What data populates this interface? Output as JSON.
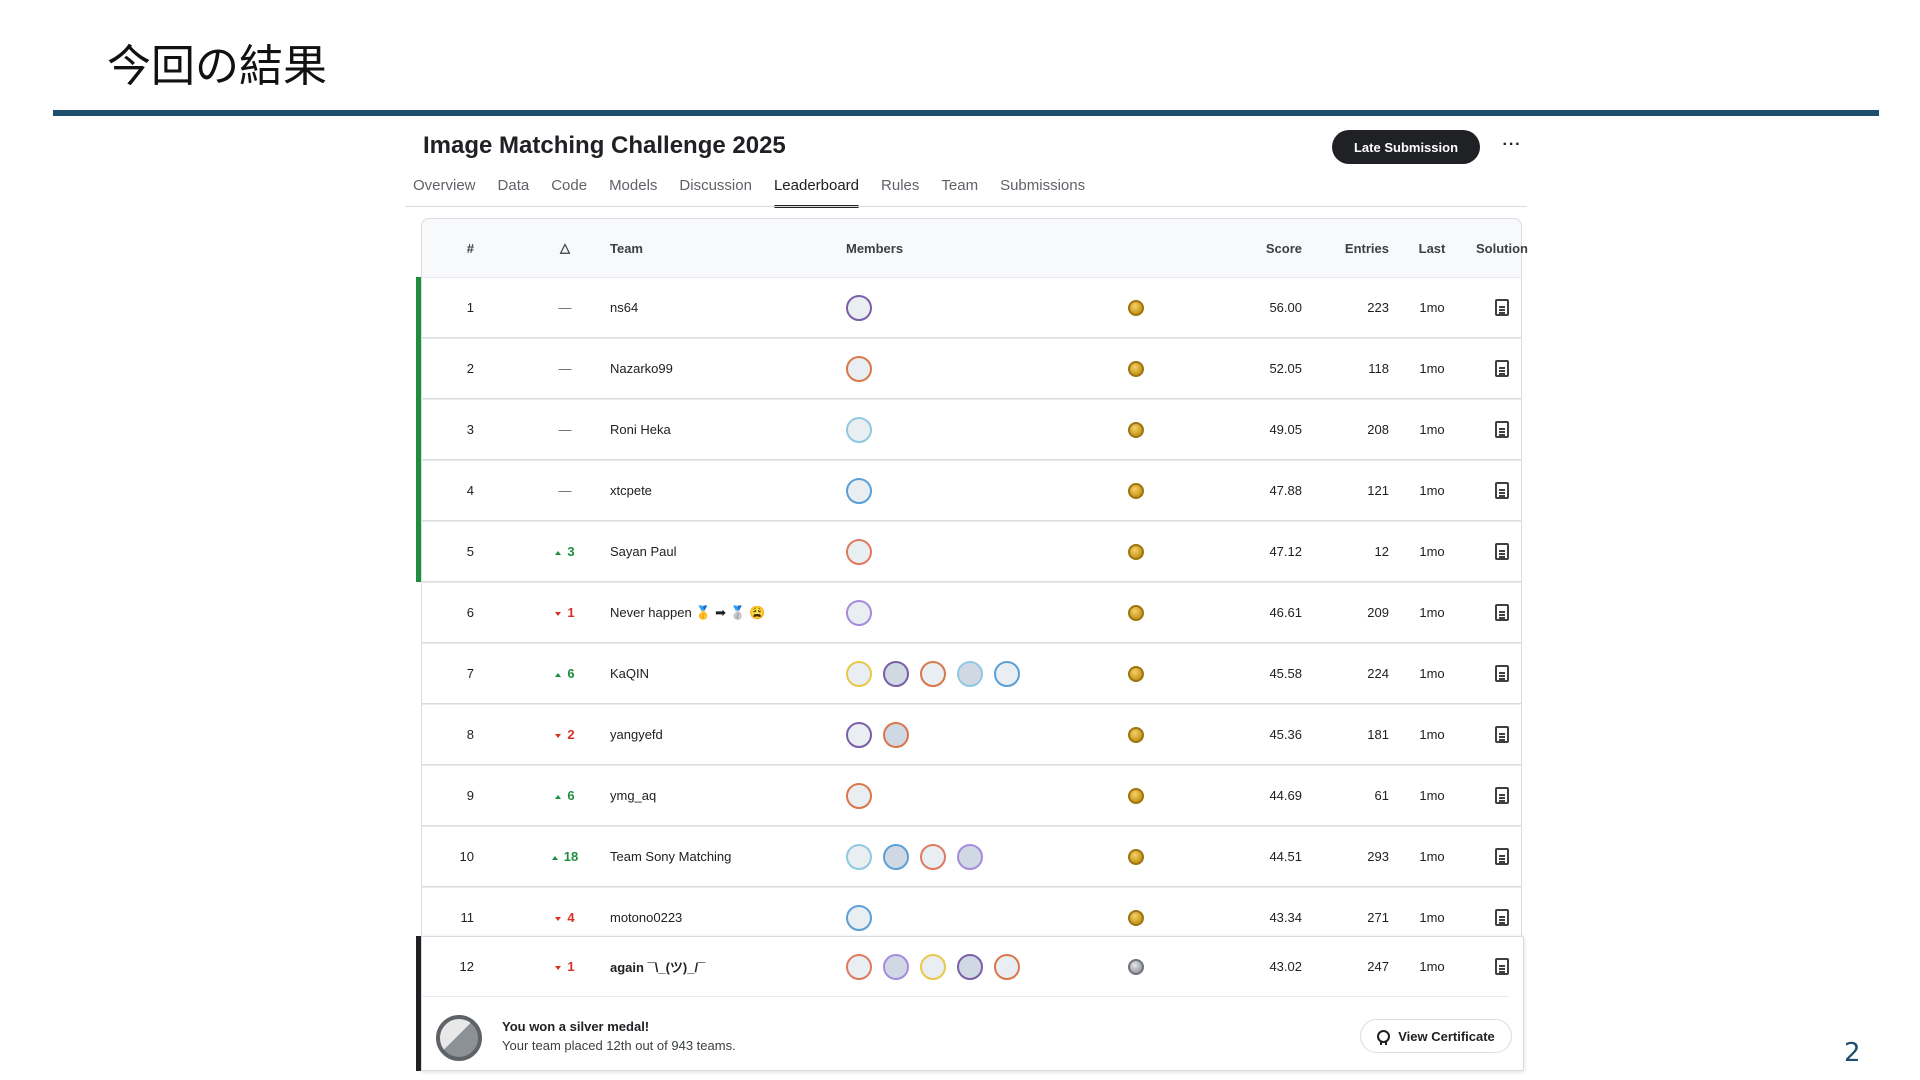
{
  "slide": {
    "title": "今回の結果",
    "page_number": "2"
  },
  "competition": {
    "title": "Image Matching Challenge 2025",
    "late_submission_label": "Late Submission",
    "more_label": "···",
    "tabs": [
      "Overview",
      "Data",
      "Code",
      "Models",
      "Discussion",
      "Leaderboard",
      "Rules",
      "Team",
      "Submissions"
    ],
    "active_tab": "Leaderboard"
  },
  "leaderboard": {
    "headers": {
      "rank": "#",
      "delta": "△",
      "team": "Team",
      "members": "Members",
      "score": "Score",
      "entries": "Entries",
      "last": "Last",
      "solution": "Solution"
    },
    "rows": [
      {
        "rank": "1",
        "delta": "—",
        "delta_dir": "none",
        "team": "ns64",
        "member_count": 1,
        "medal": "gold",
        "score": "56.00",
        "entries": "223",
        "last": "1mo"
      },
      {
        "rank": "2",
        "delta": "—",
        "delta_dir": "none",
        "team": "Nazarko99",
        "member_count": 1,
        "medal": "gold",
        "score": "52.05",
        "entries": "118",
        "last": "1mo"
      },
      {
        "rank": "3",
        "delta": "—",
        "delta_dir": "none",
        "team": "Roni Heka",
        "member_count": 1,
        "medal": "gold",
        "score": "49.05",
        "entries": "208",
        "last": "1mo"
      },
      {
        "rank": "4",
        "delta": "—",
        "delta_dir": "none",
        "team": "xtcpete",
        "member_count": 1,
        "medal": "gold",
        "score": "47.88",
        "entries": "121",
        "last": "1mo"
      },
      {
        "rank": "5",
        "delta": "3",
        "delta_dir": "up",
        "team": "Sayan Paul",
        "member_count": 1,
        "medal": "gold",
        "score": "47.12",
        "entries": "12",
        "last": "1mo"
      },
      {
        "rank": "6",
        "delta": "1",
        "delta_dir": "down",
        "team": "Never happen 🥇 ➡ 🥈 😩",
        "member_count": 1,
        "medal": "gold",
        "score": "46.61",
        "entries": "209",
        "last": "1mo"
      },
      {
        "rank": "7",
        "delta": "6",
        "delta_dir": "up",
        "team": "KaQIN",
        "member_count": 5,
        "medal": "gold",
        "score": "45.58",
        "entries": "224",
        "last": "1mo"
      },
      {
        "rank": "8",
        "delta": "2",
        "delta_dir": "down",
        "team": "yangyefd",
        "member_count": 2,
        "medal": "gold",
        "score": "45.36",
        "entries": "181",
        "last": "1mo"
      },
      {
        "rank": "9",
        "delta": "6",
        "delta_dir": "up",
        "team": "ymg_aq",
        "member_count": 1,
        "medal": "gold",
        "score": "44.69",
        "entries": "61",
        "last": "1mo"
      },
      {
        "rank": "10",
        "delta": "18",
        "delta_dir": "up",
        "team": "Team Sony Matching",
        "member_count": 4,
        "medal": "gold",
        "score": "44.51",
        "entries": "293",
        "last": "1mo"
      },
      {
        "rank": "11",
        "delta": "4",
        "delta_dir": "down",
        "team": "motono0223",
        "member_count": 1,
        "medal": "gold",
        "score": "43.34",
        "entries": "271",
        "last": "1mo"
      }
    ],
    "my_team": {
      "rank": "12",
      "delta": "1",
      "delta_dir": "down",
      "team": "again ¯\\_(ツ)_/¯",
      "member_count": 5,
      "medal": "silver",
      "score": "43.02",
      "entries": "247",
      "last": "1mo",
      "banner_title": "You won a silver medal!",
      "banner_sub": "Your team placed 12th out of 943 teams.",
      "certificate_label": "View Certificate"
    }
  },
  "colors": {
    "accent_bar": "#1f4e6e",
    "medal_zone": "#1e8e3e",
    "up": "#1e8e3e",
    "down": "#d93025"
  },
  "avatar_ring_colors": [
    "#e8c84a",
    "#7b5ea7",
    "#d9774a",
    "#8fc9e0",
    "#5aa0d8",
    "#e07a5f",
    "#a78bda"
  ]
}
